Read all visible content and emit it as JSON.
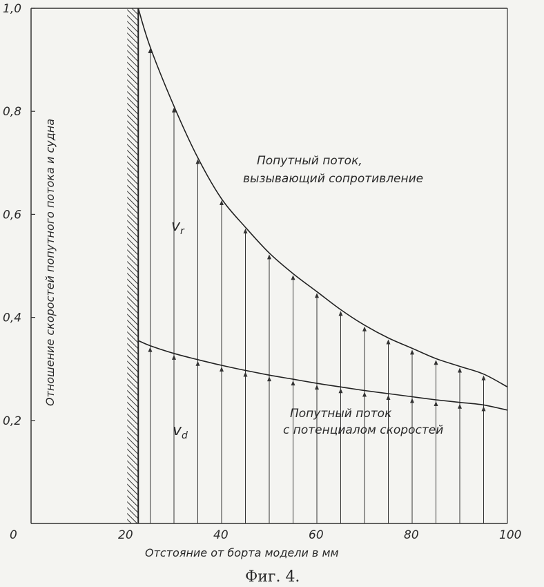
{
  "chart_data": {
    "type": "line",
    "xlabel": "Отстояние от борта модели в мм",
    "ylabel": "Отношение скоростей попутного потока и судна",
    "xlim": [
      0,
      100
    ],
    "ylim": [
      0,
      1.0
    ],
    "x_ticks": [
      "0",
      "20",
      "40",
      "60",
      "80",
      "100"
    ],
    "y_ticks": [
      "0,2",
      "0,4",
      "0,6",
      "0,8",
      "1,0"
    ],
    "x_tick_values": [
      0,
      20,
      40,
      60,
      80,
      100
    ],
    "y_tick_values": [
      0.2,
      0.4,
      0.6,
      0.8,
      1.0
    ],
    "wall_x": 22.5,
    "x": [
      25,
      30,
      35,
      40,
      45,
      50,
      55,
      60,
      65,
      70,
      75,
      80,
      85,
      90,
      95
    ],
    "series": [
      {
        "annotation": "Попутный поток, вызывающий сопротивление",
        "symbol": "v",
        "subscript": "r",
        "curve_start": [
          22.5,
          1.0
        ],
        "curve_end": [
          100,
          0.265
        ],
        "values": [
          0.925,
          0.81,
          0.71,
          0.63,
          0.575,
          0.525,
          0.485,
          0.45,
          0.415,
          0.385,
          0.36,
          0.34,
          0.32,
          0.305,
          0.29
        ]
      },
      {
        "annotation": "Попутный поток с потенциалом скоростей",
        "symbol": "v",
        "subscript": "d",
        "curve_start": [
          22.5,
          0.355
        ],
        "curve_end": [
          100,
          0.22
        ],
        "values": [
          0.345,
          0.33,
          0.318,
          0.307,
          0.297,
          0.288,
          0.28,
          0.272,
          0.265,
          0.258,
          0.252,
          0.246,
          0.24,
          0.235,
          0.23
        ]
      }
    ],
    "caption": "Фиг. 4."
  }
}
